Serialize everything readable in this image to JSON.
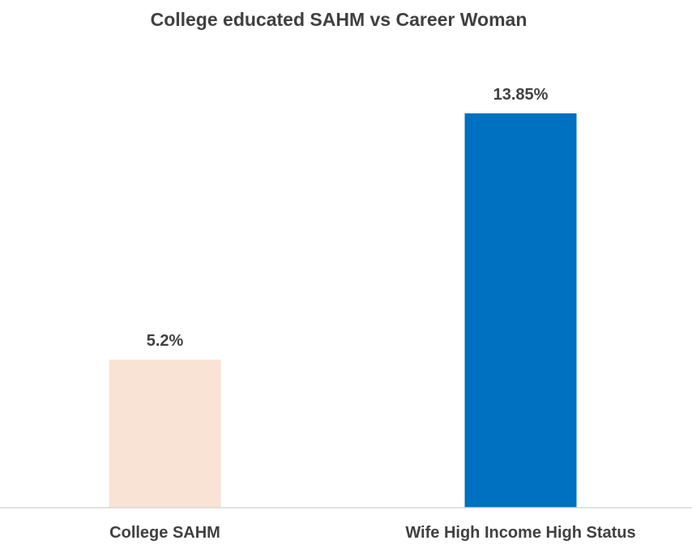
{
  "chart_data": {
    "type": "bar",
    "title": "College educated SAHM vs Career Woman",
    "categories": [
      "College SAHM",
      "Wife High Income High Status"
    ],
    "values": [
      5.2,
      13.85
    ],
    "data_labels": [
      "5.2%",
      "13.85%"
    ],
    "colors": [
      "#F8E3D5",
      "#0070C0"
    ],
    "axis_color": "#D9D9D9",
    "ylim": [
      0,
      17.1
    ],
    "grid": false,
    "legend": "none"
  }
}
